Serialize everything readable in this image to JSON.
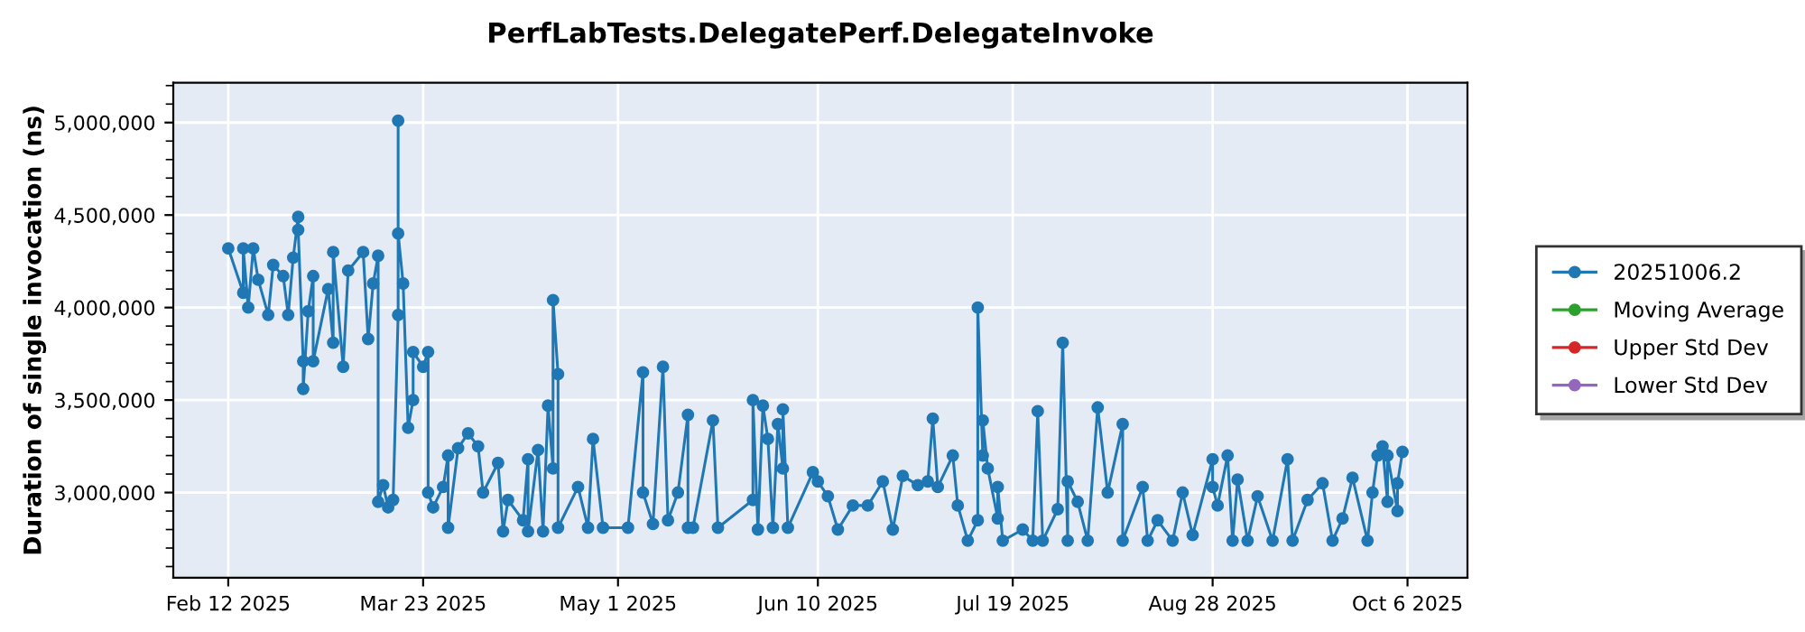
{
  "chart_data": {
    "type": "line",
    "title": "PerfLabTests.DelegatePerf.DelegateInvoke",
    "ylabel": "Duration of single invocation (ns)",
    "xlim": [
      "2025-02-01",
      "2025-10-18"
    ],
    "xticks": [
      {
        "value": "2025-02-12",
        "label": "Feb 12 2025"
      },
      {
        "value": "2025-03-23",
        "label": "Mar 23 2025"
      },
      {
        "value": "2025-05-01",
        "label": "May 1 2025"
      },
      {
        "value": "2025-06-10",
        "label": "Jun 10 2025"
      },
      {
        "value": "2025-07-19",
        "label": "Jul 19 2025"
      },
      {
        "value": "2025-08-28",
        "label": "Aug 28 2025"
      },
      {
        "value": "2025-10-06",
        "label": "Oct 6 2025"
      }
    ],
    "ylim": [
      2540000,
      5215000
    ],
    "yticks": [
      {
        "value": 3000000,
        "label": "3,000,000"
      },
      {
        "value": 3500000,
        "label": "3,500,000"
      },
      {
        "value": 4000000,
        "label": "4,000,000"
      },
      {
        "value": 4500000,
        "label": "4,500,000"
      },
      {
        "value": 5000000,
        "label": "5,000,000"
      }
    ],
    "grid": true,
    "legend": "right",
    "marker": "circle",
    "line_style": "solid",
    "series": [
      {
        "name": "20251006.2",
        "color": "#1f77b4",
        "x": [
          "2025-02-12",
          "2025-02-15",
          "2025-02-15",
          "2025-02-16",
          "2025-02-17",
          "2025-02-18",
          "2025-02-20",
          "2025-02-21",
          "2025-02-23",
          "2025-02-24",
          "2025-02-25",
          "2025-02-26",
          "2025-02-26",
          "2025-02-27",
          "2025-02-27",
          "2025-02-28",
          "2025-03-01",
          "2025-03-01",
          "2025-03-04",
          "2025-03-05",
          "2025-03-05",
          "2025-03-07",
          "2025-03-08",
          "2025-03-11",
          "2025-03-12",
          "2025-03-13",
          "2025-03-14",
          "2025-03-14",
          "2025-03-15",
          "2025-03-16",
          "2025-03-17",
          "2025-03-18",
          "2025-03-18",
          "2025-03-18",
          "2025-03-19",
          "2025-03-20",
          "2025-03-21",
          "2025-03-21",
          "2025-03-23",
          "2025-03-24",
          "2025-03-24",
          "2025-03-25",
          "2025-03-27",
          "2025-03-28",
          "2025-03-28",
          "2025-03-30",
          "2025-04-01",
          "2025-04-03",
          "2025-04-04",
          "2025-04-07",
          "2025-04-08",
          "2025-04-09",
          "2025-04-12",
          "2025-04-13",
          "2025-04-13",
          "2025-04-15",
          "2025-04-16",
          "2025-04-17",
          "2025-04-18",
          "2025-04-18",
          "2025-04-19",
          "2025-04-19",
          "2025-04-23",
          "2025-04-25",
          "2025-04-26",
          "2025-04-28",
          "2025-05-03",
          "2025-05-06",
          "2025-05-06",
          "2025-05-08",
          "2025-05-10",
          "2025-05-11",
          "2025-05-13",
          "2025-05-15",
          "2025-05-15",
          "2025-05-16",
          "2025-05-20",
          "2025-05-21",
          "2025-05-28",
          "2025-05-28",
          "2025-05-29",
          "2025-05-30",
          "2025-05-31",
          "2025-06-01",
          "2025-06-02",
          "2025-06-03",
          "2025-06-03",
          "2025-06-04",
          "2025-06-09",
          "2025-06-10",
          "2025-06-12",
          "2025-06-14",
          "2025-06-17",
          "2025-06-20",
          "2025-06-23",
          "2025-06-25",
          "2025-06-27",
          "2025-06-30",
          "2025-07-02",
          "2025-07-03",
          "2025-07-04",
          "2025-07-07",
          "2025-07-08",
          "2025-07-10",
          "2025-07-12",
          "2025-07-12",
          "2025-07-13",
          "2025-07-13",
          "2025-07-14",
          "2025-07-16",
          "2025-07-16",
          "2025-07-17",
          "2025-07-21",
          "2025-07-23",
          "2025-07-24",
          "2025-07-25",
          "2025-07-28",
          "2025-07-29",
          "2025-07-30",
          "2025-07-30",
          "2025-08-01",
          "2025-08-03",
          "2025-08-05",
          "2025-08-07",
          "2025-08-10",
          "2025-08-10",
          "2025-08-14",
          "2025-08-15",
          "2025-08-17",
          "2025-08-20",
          "2025-08-22",
          "2025-08-24",
          "2025-08-28",
          "2025-08-28",
          "2025-08-29",
          "2025-08-31",
          "2025-09-01",
          "2025-09-02",
          "2025-09-04",
          "2025-09-06",
          "2025-09-09",
          "2025-09-12",
          "2025-09-13",
          "2025-09-16",
          "2025-09-19",
          "2025-09-21",
          "2025-09-23",
          "2025-09-25",
          "2025-09-28",
          "2025-09-29",
          "2025-09-30",
          "2025-10-01",
          "2025-10-02",
          "2025-10-02",
          "2025-10-04",
          "2025-10-04",
          "2025-10-05"
        ],
        "values": [
          4320000,
          4080000,
          4320000,
          4000000,
          4320000,
          4150000,
          3960000,
          4230000,
          4170000,
          3960000,
          4270000,
          4490000,
          4420000,
          3710000,
          3560000,
          3980000,
          4170000,
          3710000,
          4100000,
          3810000,
          4300000,
          3680000,
          4200000,
          4300000,
          3830000,
          4130000,
          4280000,
          2950000,
          3040000,
          2920000,
          2960000,
          3960000,
          5010000,
          4400000,
          4130000,
          3350000,
          3500000,
          3760000,
          3680000,
          3760000,
          3000000,
          2920000,
          3030000,
          3200000,
          2810000,
          3240000,
          3320000,
          3250000,
          3000000,
          3160000,
          2790000,
          2960000,
          2850000,
          3180000,
          2790000,
          3230000,
          2790000,
          3470000,
          3130000,
          4040000,
          3640000,
          2810000,
          3030000,
          2810000,
          3290000,
          2810000,
          2810000,
          3650000,
          3000000,
          2830000,
          3680000,
          2850000,
          3000000,
          3420000,
          2810000,
          2810000,
          3390000,
          2810000,
          2960000,
          3500000,
          2800000,
          3470000,
          3290000,
          2810000,
          3370000,
          3130000,
          3450000,
          2810000,
          3110000,
          3060000,
          2980000,
          2800000,
          2930000,
          2930000,
          3060000,
          2800000,
          3090000,
          3040000,
          3060000,
          3400000,
          3030000,
          3200000,
          2930000,
          2740000,
          2850000,
          4000000,
          3200000,
          3390000,
          3130000,
          2860000,
          3030000,
          2740000,
          2800000,
          2740000,
          3440000,
          2740000,
          2910000,
          3810000,
          2740000,
          3060000,
          2950000,
          2740000,
          3460000,
          3000000,
          3370000,
          2740000,
          3030000,
          2740000,
          2850000,
          2740000,
          3000000,
          2770000,
          3180000,
          3030000,
          2930000,
          3200000,
          2740000,
          3070000,
          2740000,
          2980000,
          2740000,
          3180000,
          2740000,
          2960000,
          3050000,
          2740000,
          2860000,
          3080000,
          2740000,
          3000000,
          3200000,
          3250000,
          2950000,
          3200000,
          2900000,
          3050000,
          3220000
        ]
      },
      {
        "name": "Moving Average",
        "color": "#2ca02c"
      },
      {
        "name": "Upper Std Dev",
        "color": "#d62728"
      },
      {
        "name": "Lower Std Dev",
        "color": "#9467bd"
      }
    ]
  }
}
